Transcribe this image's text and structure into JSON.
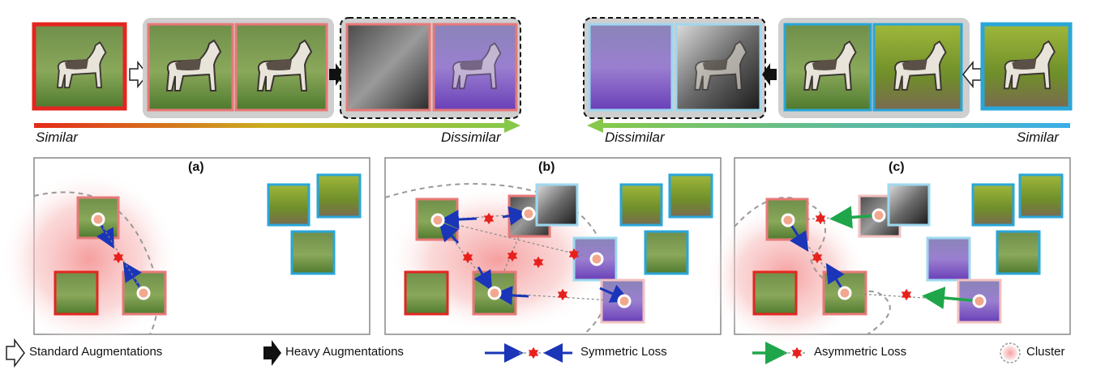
{
  "top_row": {
    "left_label": "Similar",
    "center_left_label": "Dissimilar",
    "center_right_label": "Dissimilar",
    "right_label": "Similar"
  },
  "panels": [
    {
      "title": "(a)"
    },
    {
      "title": "(b)"
    },
    {
      "title": "(c)"
    }
  ],
  "legend": {
    "standard": "Standard Augmentations",
    "heavy": "Heavy Augmentations",
    "symmetric": "Symmetric Loss",
    "asymmetric": "Asymmetric Loss",
    "cluster": "Cluster"
  },
  "colors": {
    "red_frame": "#e3261f",
    "light_red_frame": "#e87878",
    "blue_frame": "#2aa6d8",
    "light_blue_frame": "#9ed8ef",
    "symmetric_arrow": "#1a35b8",
    "asymmetric_arrow": "#1fa64a",
    "star": "#e8201c",
    "gradient_start": "#e52a1a",
    "gradient_mid": "#c9b020",
    "gradient_end": "#86c84a",
    "gradient_right_end": "#3aaee8"
  }
}
